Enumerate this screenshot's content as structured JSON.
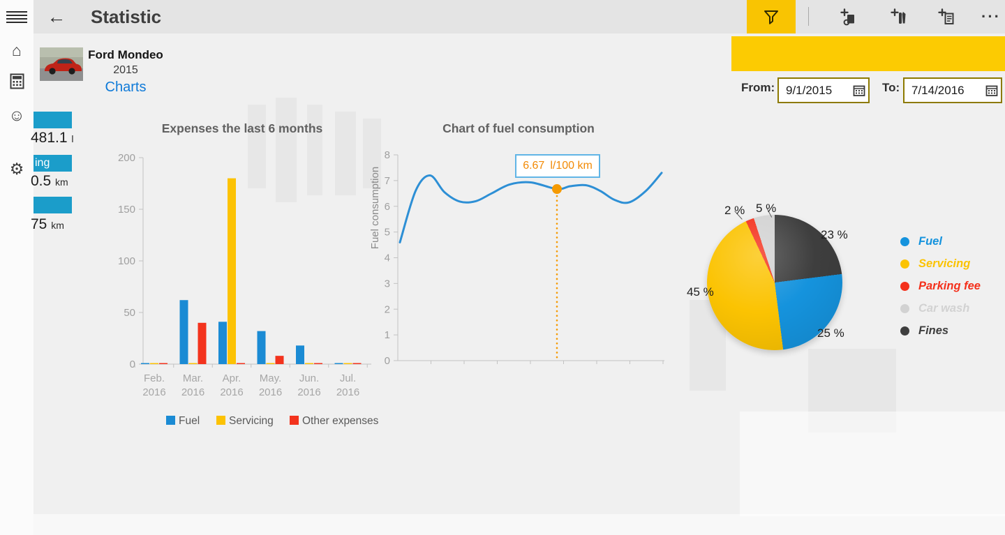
{
  "app": {
    "title": "Statistic"
  },
  "topbar": {
    "back_icon": "←",
    "more_glyph": "···",
    "buttons": [
      {
        "name": "filter",
        "icon": "funnel-icon",
        "active": true
      },
      {
        "name": "add-refueling",
        "icon": "add-refueling-icon"
      },
      {
        "name": "add-service",
        "icon": "add-service-icon"
      },
      {
        "name": "add-expense",
        "icon": "add-expense-icon"
      },
      {
        "name": "more",
        "icon": "ellipsis-icon"
      }
    ],
    "accent_color": "#f9c402"
  },
  "sidebar": {
    "items": [
      {
        "name": "home",
        "icon": "home-icon",
        "glyph": "⌂"
      },
      {
        "name": "calculator",
        "icon": "calculator-icon",
        "glyph": ""
      },
      {
        "name": "smiley",
        "icon": "smiley-icon",
        "glyph": "☺"
      },
      {
        "name": "settings",
        "icon": "gear-icon",
        "glyph": "⚙"
      }
    ]
  },
  "filter_panel": {
    "from_label": "From:",
    "from_value": "9/1/2015",
    "to_label": "To:",
    "to_value": "7/14/2016",
    "background": "#fccb02"
  },
  "vehicle": {
    "name": "Ford Mondeo",
    "year": "2015",
    "link_label": "Charts"
  },
  "side_stats": [
    {
      "header_fragment": "",
      "value": "481.1",
      "unit": "l"
    },
    {
      "header_fragment": "ing",
      "value": "0.5",
      "unit": "km"
    },
    {
      "header_fragment": "",
      "value": "75",
      "unit": "km"
    }
  ],
  "chart_data": [
    {
      "type": "bar",
      "title": "Expenses the last 6 months",
      "categories": [
        "Feb. 2016",
        "Mar. 2016",
        "Apr. 2016",
        "May. 2016",
        "Jun. 2016",
        "Jul. 2016"
      ],
      "series": [
        {
          "name": "Fuel",
          "color": "#1b8bd4",
          "values": [
            1,
            62,
            41,
            32,
            18,
            1
          ]
        },
        {
          "name": "Servicing",
          "color": "#fcc203",
          "values": [
            1,
            1,
            180,
            1,
            1,
            1
          ]
        },
        {
          "name": "Other expenses",
          "color": "#f3331d",
          "values": [
            1,
            40,
            1,
            8,
            1,
            1
          ]
        }
      ],
      "ylim": [
        0,
        200
      ],
      "ytick_step": 50,
      "grid": false,
      "legend_position": "bottom"
    },
    {
      "type": "line",
      "title": "Chart of fuel consumption",
      "ylabel": "Fuel consumption",
      "ylim": [
        0,
        8
      ],
      "ytick_step": 1,
      "color": "#2d8fd5",
      "x": [
        0,
        0.06,
        0.115,
        0.17,
        0.23,
        0.29,
        0.35,
        0.42,
        0.5,
        0.6,
        0.65,
        0.71,
        0.765,
        0.82,
        0.875,
        0.94,
        1.0
      ],
      "y": [
        4.6,
        6.6,
        7.2,
        6.55,
        6.18,
        6.2,
        6.5,
        6.85,
        6.93,
        6.67,
        6.78,
        6.82,
        6.6,
        6.25,
        6.15,
        6.6,
        7.3
      ],
      "marker": {
        "x_index": 9,
        "value": 6.67,
        "label_value": "6.67",
        "label_unit": "l/100 km",
        "color": "#f59a02"
      },
      "grid": false
    },
    {
      "type": "pie",
      "slices": [
        {
          "label": "Fuel",
          "pct": 25,
          "color": "#1593dd"
        },
        {
          "label": "Servicing",
          "pct": 45,
          "color": "#fbc302"
        },
        {
          "label": "Parking fee",
          "pct": 2,
          "color": "#f4301b"
        },
        {
          "label": "Car wash",
          "pct": 5,
          "color": "#d2d2d2"
        },
        {
          "label": "Fines",
          "pct": 23,
          "color": "#3e3e3e"
        }
      ],
      "draw_order": [
        "Fines",
        "Fuel",
        "Servicing",
        "Parking fee",
        "Car wash"
      ],
      "label_suffix": " %",
      "legend_position": "right"
    }
  ]
}
